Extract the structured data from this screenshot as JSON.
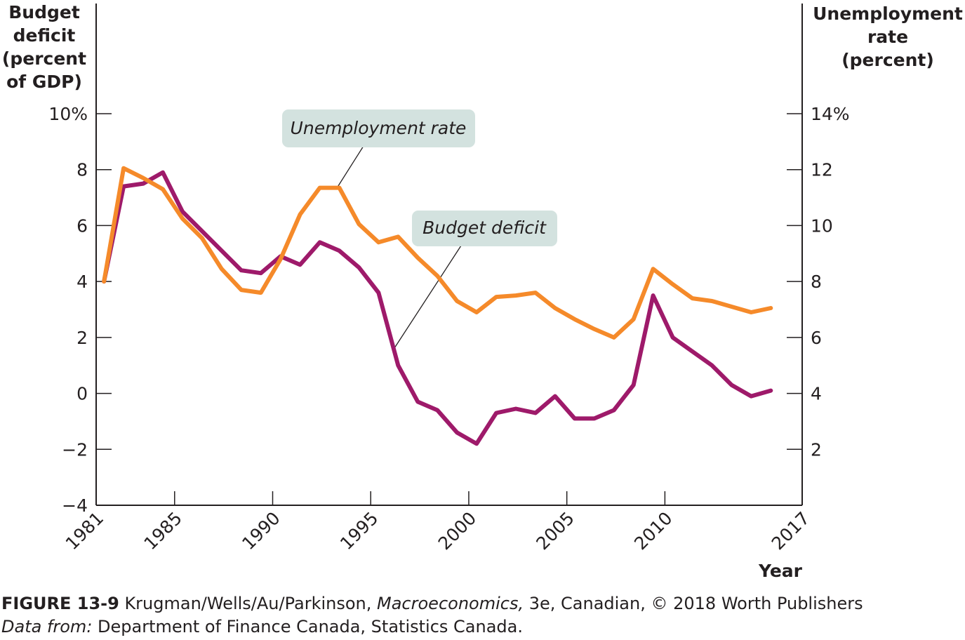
{
  "chart_data": {
    "type": "line",
    "title": "",
    "xlabel": "Year",
    "ylabel_left": [
      "Budget",
      "deficit",
      "(percent",
      "of GDP)"
    ],
    "ylabel_right": [
      "Unemployment",
      "rate",
      "(percent)"
    ],
    "xlim": [
      1981,
      2017
    ],
    "ylim_left": [
      -4,
      10
    ],
    "ylim_right": [
      0,
      14
    ],
    "x_ticks": [
      "1981",
      "1985",
      "1990",
      "1995",
      "2000",
      "2005",
      "2010",
      "2017"
    ],
    "x_tick_values": [
      1981,
      1985,
      1990,
      1995,
      2000,
      2005,
      2010,
      2017
    ],
    "y_ticks_left": [
      "10%",
      "8",
      "6",
      "4",
      "2",
      "0",
      "−2",
      "−4"
    ],
    "y_tick_values_left": [
      10,
      8,
      6,
      4,
      2,
      0,
      -2,
      -4
    ],
    "y_ticks_right": [
      "14%",
      "12",
      "10",
      "8",
      "6",
      "4",
      "2"
    ],
    "y_tick_values_right": [
      14,
      12,
      10,
      8,
      6,
      4,
      2
    ],
    "grid": false,
    "x": [
      1981,
      1982,
      1983,
      1984,
      1985,
      1986,
      1987,
      1988,
      1989,
      1990,
      1991,
      1992,
      1993,
      1994,
      1995,
      1996,
      1997,
      1998,
      1999,
      2000,
      2001,
      2002,
      2003,
      2004,
      2005,
      2006,
      2007,
      2008,
      2009,
      2010,
      2011,
      2012,
      2013,
      2014,
      2015
    ],
    "series": [
      {
        "name": "Budget deficit",
        "axis": "left",
        "color": "#9e1a6a",
        "values": [
          4.0,
          7.4,
          7.5,
          7.9,
          6.5,
          5.8,
          5.1,
          4.4,
          4.3,
          4.9,
          4.6,
          5.4,
          5.1,
          4.5,
          3.6,
          1.0,
          -0.3,
          -0.6,
          -1.4,
          -1.8,
          -0.7,
          -0.55,
          -0.7,
          -0.1,
          -0.9,
          -0.9,
          -0.6,
          0.3,
          3.5,
          2.0,
          1.5,
          1.0,
          0.3,
          -0.1,
          0.1
        ]
      },
      {
        "name": "Unemployment rate",
        "axis": "right",
        "color": "#f58a2a",
        "values": [
          8.0,
          12.05,
          11.7,
          11.3,
          10.25,
          9.55,
          8.45,
          7.7,
          7.6,
          8.8,
          10.4,
          11.35,
          11.35,
          10.05,
          9.4,
          9.6,
          8.85,
          8.2,
          7.3,
          6.9,
          7.45,
          7.5,
          7.6,
          7.05,
          6.65,
          6.3,
          6.0,
          6.65,
          8.45,
          7.9,
          7.4,
          7.3,
          7.1,
          6.9,
          7.05
        ]
      }
    ],
    "annotations": [
      "Unemployment rate",
      "Budget deficit"
    ]
  },
  "caption": {
    "figure": "FIGURE 13-9",
    "authors": " Krugman/Wells/Au/Parkinson, ",
    "book": "Macroeconomics,",
    "rest": " 3e, Canadian, © 2018 Worth Publishers",
    "source_label": "Data from:",
    "source": " Department of Finance Canada, Statistics Canada."
  },
  "colors": {
    "annotation_box": "#d3e2df",
    "axis": "#231f20"
  }
}
